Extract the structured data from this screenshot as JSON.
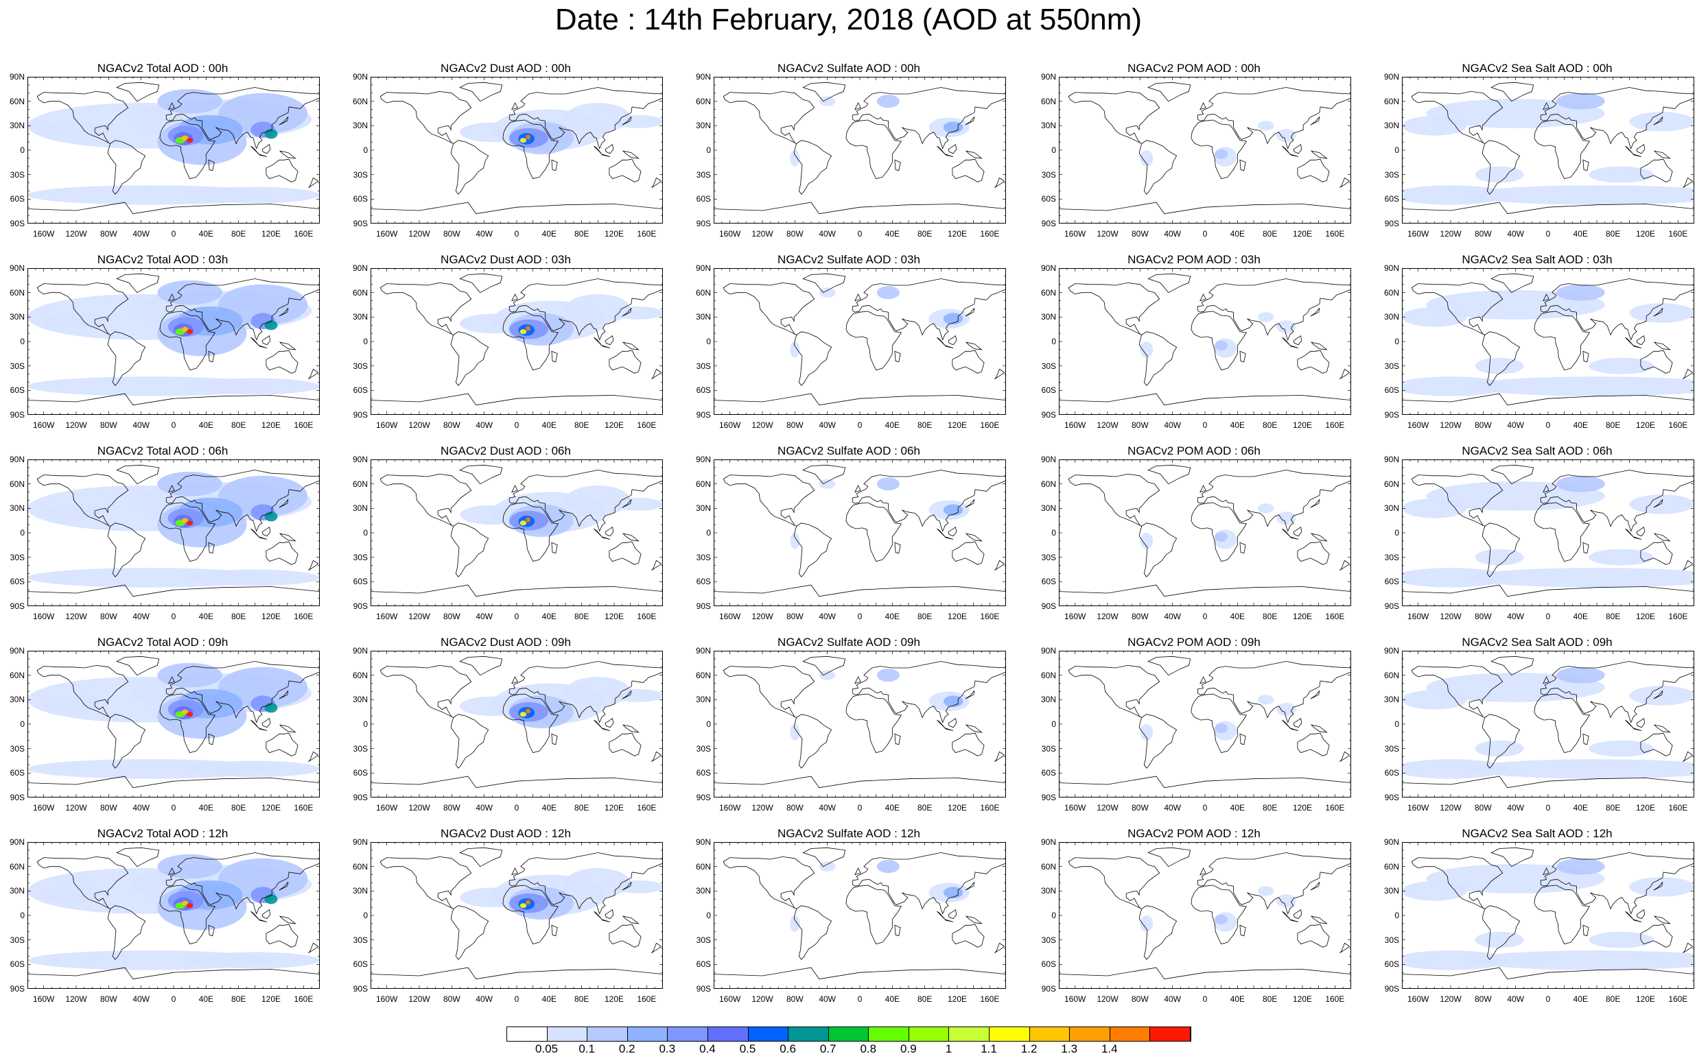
{
  "title": "Date : 14th February, 2018 (AOD at 550nm)",
  "lat_ticks": [
    "90N",
    "60N",
    "30N",
    "0",
    "30S",
    "60S",
    "90S"
  ],
  "lon_ticks": [
    "160W",
    "120W",
    "80W",
    "40W",
    "0",
    "40E",
    "80E",
    "120E",
    "160E"
  ],
  "panels": [
    {
      "title": "NGACv2 Total AOD : 00h",
      "field": "total",
      "hour": "00h"
    },
    {
      "title": "NGACv2 Dust AOD : 00h",
      "field": "dust",
      "hour": "00h"
    },
    {
      "title": "NGACv2 Sulfate AOD : 00h",
      "field": "sulfate",
      "hour": "00h"
    },
    {
      "title": "NGACv2 POM AOD : 00h",
      "field": "pom",
      "hour": "00h"
    },
    {
      "title": "NGACv2 Sea Salt AOD : 00h",
      "field": "seasalt",
      "hour": "00h"
    },
    {
      "title": "NGACv2 Total AOD : 03h",
      "field": "total",
      "hour": "03h"
    },
    {
      "title": "NGACv2 Dust AOD : 03h",
      "field": "dust",
      "hour": "03h"
    },
    {
      "title": "NGACv2 Sulfate AOD : 03h",
      "field": "sulfate",
      "hour": "03h"
    },
    {
      "title": "NGACv2 POM AOD : 03h",
      "field": "pom",
      "hour": "03h"
    },
    {
      "title": "NGACv2 Sea Salt AOD : 03h",
      "field": "seasalt",
      "hour": "03h"
    },
    {
      "title": "NGACv2 Total AOD : 06h",
      "field": "total",
      "hour": "06h"
    },
    {
      "title": "NGACv2 Dust AOD : 06h",
      "field": "dust",
      "hour": "06h"
    },
    {
      "title": "NGACv2 Sulfate AOD : 06h",
      "field": "sulfate",
      "hour": "06h"
    },
    {
      "title": "NGACv2 POM AOD : 06h",
      "field": "pom",
      "hour": "06h"
    },
    {
      "title": "NGACv2 Sea Salt AOD : 06h",
      "field": "seasalt",
      "hour": "06h"
    },
    {
      "title": "NGACv2 Total AOD : 09h",
      "field": "total",
      "hour": "09h"
    },
    {
      "title": "NGACv2 Dust AOD : 09h",
      "field": "dust",
      "hour": "09h"
    },
    {
      "title": "NGACv2 Sulfate AOD : 09h",
      "field": "sulfate",
      "hour": "09h"
    },
    {
      "title": "NGACv2 POM AOD : 09h",
      "field": "pom",
      "hour": "09h"
    },
    {
      "title": "NGACv2 Sea Salt  AOD : 09h",
      "field": "seasalt",
      "hour": "09h"
    },
    {
      "title": "NGACv2 Total AOD : 12h",
      "field": "total",
      "hour": "12h"
    },
    {
      "title": "NGACv2 Dust AOD : 12h",
      "field": "dust",
      "hour": "12h"
    },
    {
      "title": "NGACv2 Sulfate AOD : 12h",
      "field": "sulfate",
      "hour": "12h"
    },
    {
      "title": "NGACv2 POM  AOD : 12h",
      "field": "pom",
      "hour": "12h"
    },
    {
      "title": "NGACv2 Sea Salt  AOD : 12h",
      "field": "seasalt",
      "hour": "12h"
    }
  ],
  "colorbar": {
    "labels": [
      "0.05",
      "0.1",
      "0.2",
      "0.3",
      "0.4",
      "0.5",
      "0.6",
      "0.7",
      "0.8",
      "0.9",
      "1",
      "1.1",
      "1.2",
      "1.3",
      "1.4"
    ],
    "colors": [
      "#ffffff",
      "#d6e2ff",
      "#b5c9ff",
      "#8eb2ff",
      "#7f96ff",
      "#6370ff",
      "#0063ff",
      "#009696",
      "#00c633",
      "#63ff00",
      "#96ff00",
      "#c6ff33",
      "#ffff00",
      "#ffc600",
      "#ffa000",
      "#ff7c00",
      "#ff1900"
    ]
  },
  "colors": {
    "land_outline": "#000000",
    "background": "#ffffff"
  }
}
